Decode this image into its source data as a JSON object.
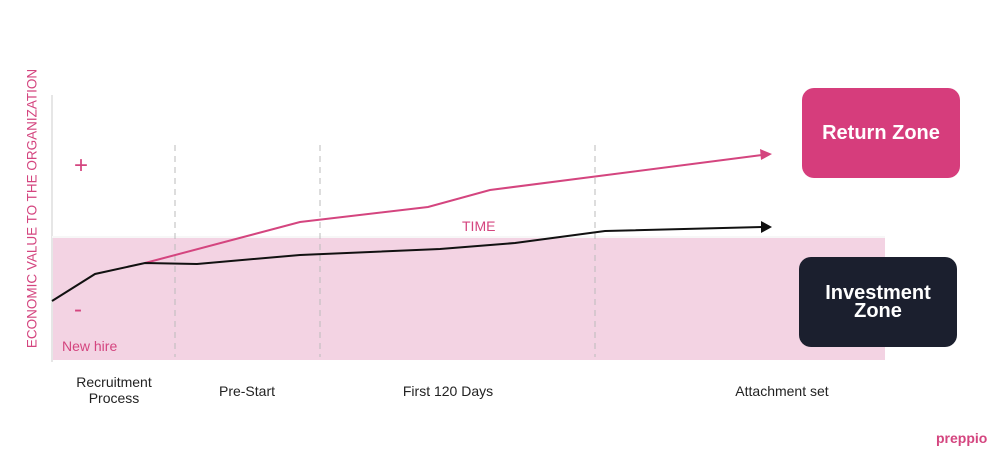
{
  "axis_label": "ECONOMIC VALUE TO THE ORGANIZATION",
  "plus": "+",
  "minus": "-",
  "new_hire": "New hire",
  "time": "TIME",
  "zones": {
    "return": "Return Zone",
    "investment": "Investment Zone"
  },
  "phases": [
    "Recruitment Process",
    "Pre-Start",
    "First 120 Days",
    "Attachment set"
  ],
  "logo": "preppio"
}
